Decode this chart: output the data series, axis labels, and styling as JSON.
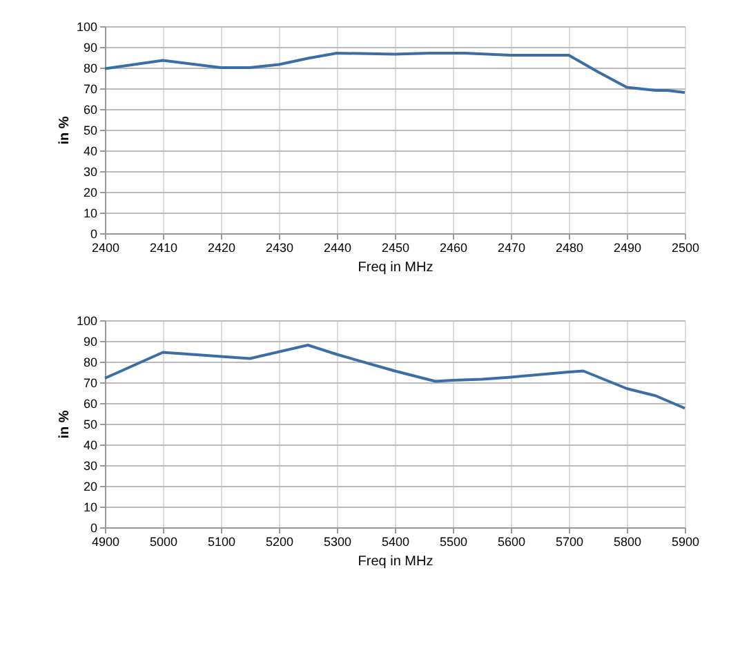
{
  "chart_data": [
    {
      "type": "line",
      "xlabel": "Freq in MHz",
      "ylabel": "in %",
      "xlim": [
        2400,
        2500
      ],
      "xticks": [
        2400,
        2410,
        2420,
        2430,
        2440,
        2450,
        2460,
        2470,
        2480,
        2490,
        2500
      ],
      "ylim": [
        0,
        100
      ],
      "yticks": [
        0,
        10,
        20,
        30,
        40,
        50,
        60,
        70,
        80,
        90,
        100
      ],
      "grid": true,
      "series": [
        {
          "color": "#3a6ea5",
          "x": [
            2400,
            2410,
            2420,
            2425,
            2430,
            2435,
            2440,
            2450,
            2456,
            2462,
            2470,
            2480,
            2485,
            2490,
            2495,
            2497,
            2500
          ],
          "values": [
            79.5,
            83.5,
            80,
            80,
            81.5,
            84.5,
            87,
            86.5,
            87,
            87,
            86,
            86,
            78,
            70.5,
            69,
            69,
            68
          ]
        }
      ]
    },
    {
      "type": "line",
      "xlabel": "Freq in MHz",
      "ylabel": "in %",
      "xlim": [
        4900,
        5900
      ],
      "xticks": [
        4900,
        5000,
        5100,
        5200,
        5300,
        5400,
        5500,
        5600,
        5700,
        5800,
        5900
      ],
      "ylim": [
        0,
        100
      ],
      "yticks": [
        0,
        10,
        20,
        30,
        40,
        50,
        60,
        70,
        80,
        90,
        100
      ],
      "grid": true,
      "series": [
        {
          "color": "#3a6ea5",
          "x": [
            4900,
            5000,
            5100,
            5150,
            5250,
            5300,
            5400,
            5470,
            5500,
            5550,
            5600,
            5700,
            5725,
            5800,
            5850,
            5900
          ],
          "values": [
            72,
            84.5,
            82.5,
            81.5,
            88,
            83.5,
            75.5,
            70.5,
            71,
            71.5,
            72.5,
            75,
            75.5,
            67,
            63.5,
            57.5
          ]
        }
      ]
    }
  ]
}
